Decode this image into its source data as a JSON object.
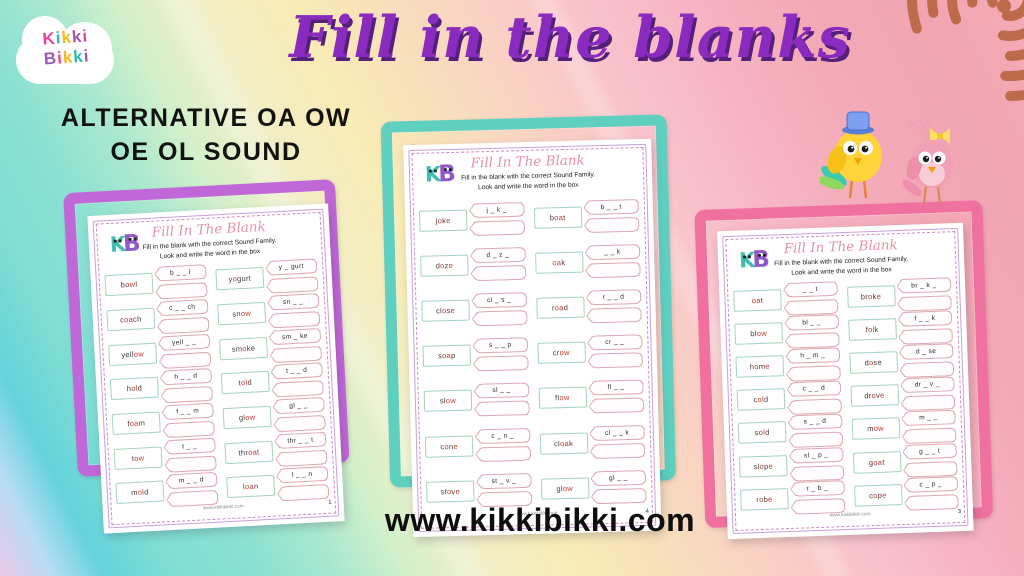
{
  "header": {
    "title": "Fill in the blanks",
    "subtitle_line1": "ALTERNATIVE OA OW",
    "subtitle_line2": "OE OL SOUND"
  },
  "brand": {
    "lines": [
      [
        [
          "K",
          "#e8439a"
        ],
        [
          "i",
          "#2db9b0"
        ],
        [
          "k",
          "#f5b91e"
        ],
        [
          "k",
          "#9b59b6"
        ],
        [
          "i",
          "#e8439a"
        ]
      ],
      [
        [
          "B",
          "#9b59b6"
        ],
        [
          "i",
          "#e8439a"
        ],
        [
          "k",
          "#f5b91e"
        ],
        [
          "k",
          "#2db9b0"
        ],
        [
          "i",
          "#9b59b6"
        ]
      ]
    ]
  },
  "footer": {
    "website": "www.kikkibikki.com"
  },
  "colors": {
    "title_purple": "#8b2abe",
    "title_shadow": "#54207c",
    "highlight_red": "#c23a2f",
    "word_ink": "#3c3c3c",
    "wordbox_border": "#a3d4b8",
    "capsule_border": "#dfa9b0",
    "dashed_border": "#cd8ac2",
    "spiral": "#bd6b4a",
    "frame_purple": "#c168d8",
    "frame_teal": "#5fcfc0",
    "frame_pink": "#f0709f"
  },
  "sheets": [
    {
      "frame_color": "#c168d8",
      "title": "Fill In The Blank",
      "instructions_line1": "Fill in the blank with the correct Sound Family.",
      "instructions_line2": "Look and write the word in the box",
      "footer_site": "www.kikkibikki.com",
      "page_number": "1",
      "rows": [
        {
          "left": {
            "word": [
              [
                "b",
                0
              ],
              [
                "ow",
                1
              ],
              [
                "l",
                0
              ]
            ],
            "hint": "b _ _ l"
          },
          "right": {
            "word": [
              [
                "y",
                0
              ],
              [
                "o",
                1
              ],
              [
                "gurt",
                0
              ]
            ],
            "hint": "y _ gurt"
          }
        },
        {
          "left": {
            "word": [
              [
                "c",
                0
              ],
              [
                "oa",
                1
              ],
              [
                "ch",
                0
              ]
            ],
            "hint": "c _ _ ch"
          },
          "right": {
            "word": [
              [
                "sn",
                0
              ],
              [
                "ow",
                1
              ]
            ],
            "hint": "sn _ _"
          }
        },
        {
          "left": {
            "word": [
              [
                "yell",
                0
              ],
              [
                "ow",
                1
              ]
            ],
            "hint": "yell _ _"
          },
          "right": {
            "word": [
              [
                "sm",
                0
              ],
              [
                "o",
                1
              ],
              [
                "ke",
                0
              ]
            ],
            "hint": "sm _ ke"
          }
        },
        {
          "left": {
            "word": [
              [
                "h",
                0
              ],
              [
                "ol",
                1
              ],
              [
                "d",
                0
              ]
            ],
            "hint": "h _ _ d"
          },
          "right": {
            "word": [
              [
                "t",
                0
              ],
              [
                "ol",
                1
              ],
              [
                "d",
                0
              ]
            ],
            "hint": "t _ _ d"
          }
        },
        {
          "left": {
            "word": [
              [
                "f",
                0
              ],
              [
                "oa",
                1
              ],
              [
                "m",
                0
              ]
            ],
            "hint": "f _ _ m"
          },
          "right": {
            "word": [
              [
                "gl",
                0
              ],
              [
                "ow",
                1
              ]
            ],
            "hint": "gl _ _"
          }
        },
        {
          "left": {
            "word": [
              [
                "t",
                0
              ],
              [
                "ow",
                1
              ]
            ],
            "hint": "t _ _"
          },
          "right": {
            "word": [
              [
                "thr",
                0
              ],
              [
                "oa",
                1
              ],
              [
                "t",
                0
              ]
            ],
            "hint": "thr _ _ t"
          }
        },
        {
          "left": {
            "word": [
              [
                "m",
                0
              ],
              [
                "ol",
                1
              ],
              [
                "d",
                0
              ]
            ],
            "hint": "m _ _ d"
          },
          "right": {
            "word": [
              [
                "l",
                0
              ],
              [
                "oa",
                1
              ],
              [
                "n",
                0
              ]
            ],
            "hint": "l _ _ n"
          }
        }
      ]
    },
    {
      "frame_color": "#5fcfc0",
      "title": "Fill In The Blank",
      "instructions_line1": "Fill in the blank with the correct Sound Family.",
      "instructions_line2": "Look and write the word in the box",
      "footer_site": "www.kikkibikki.com",
      "page_number": "4",
      "rows": [
        {
          "left": {
            "word": [
              [
                "j",
                0
              ],
              [
                "o",
                1
              ],
              [
                "k",
                0
              ],
              [
                "e",
                1
              ]
            ],
            "hint": "j _ k _"
          },
          "right": {
            "word": [
              [
                "b",
                0
              ],
              [
                "oa",
                1
              ],
              [
                "t",
                0
              ]
            ],
            "hint": "b _ _ t"
          }
        },
        {
          "left": {
            "word": [
              [
                "d",
                0
              ],
              [
                "o",
                1
              ],
              [
                "z",
                0
              ],
              [
                "e",
                1
              ]
            ],
            "hint": "d _ z _"
          },
          "right": {
            "word": [
              [
                "oa",
                1
              ],
              [
                "k",
                0
              ]
            ],
            "hint": "_ _ k"
          }
        },
        {
          "left": {
            "word": [
              [
                "cl",
                0
              ],
              [
                "o",
                1
              ],
              [
                "s",
                0
              ],
              [
                "e",
                1
              ]
            ],
            "hint": "cl _ s _"
          },
          "right": {
            "word": [
              [
                "r",
                0
              ],
              [
                "oa",
                1
              ],
              [
                "d",
                0
              ]
            ],
            "hint": "r _ _ d"
          }
        },
        {
          "left": {
            "word": [
              [
                "s",
                0
              ],
              [
                "oa",
                1
              ],
              [
                "p",
                0
              ]
            ],
            "hint": "s _ _ p"
          },
          "right": {
            "word": [
              [
                "cr",
                0
              ],
              [
                "ow",
                1
              ]
            ],
            "hint": "cr _ _"
          }
        },
        {
          "left": {
            "word": [
              [
                "sl",
                0
              ],
              [
                "ow",
                1
              ]
            ],
            "hint": "sl _ _"
          },
          "right": {
            "word": [
              [
                "fl",
                0
              ],
              [
                "ow",
                1
              ]
            ],
            "hint": "fl _ _"
          }
        },
        {
          "left": {
            "word": [
              [
                "c",
                0
              ],
              [
                "o",
                1
              ],
              [
                "n",
                0
              ],
              [
                "e",
                1
              ]
            ],
            "hint": "c _ n _"
          },
          "right": {
            "word": [
              [
                "cl",
                0
              ],
              [
                "oa",
                1
              ],
              [
                "k",
                0
              ]
            ],
            "hint": "cl _ _ k"
          }
        },
        {
          "left": {
            "word": [
              [
                "st",
                0
              ],
              [
                "o",
                1
              ],
              [
                "v",
                0
              ],
              [
                "e",
                1
              ]
            ],
            "hint": "st _ v _"
          },
          "right": {
            "word": [
              [
                "gl",
                0
              ],
              [
                "ow",
                1
              ]
            ],
            "hint": "gl _ _"
          }
        }
      ]
    },
    {
      "frame_color": "#f0709f",
      "title": "Fill In The Blank",
      "instructions_line1": "Fill in the blank with the correct Sound Family.",
      "instructions_line2": "Look and write the word in the box",
      "footer_site": "www.kikkibikki.com",
      "page_number": "3",
      "rows": [
        {
          "left": {
            "word": [
              [
                "oa",
                1
              ],
              [
                "t",
                0
              ]
            ],
            "hint": "_ _ t"
          },
          "right": {
            "word": [
              [
                "br",
                0
              ],
              [
                "o",
                1
              ],
              [
                "k",
                0
              ],
              [
                "e",
                1
              ]
            ],
            "hint": "br _ k _"
          }
        },
        {
          "left": {
            "word": [
              [
                "bl",
                0
              ],
              [
                "ow",
                1
              ]
            ],
            "hint": "bl _ _"
          },
          "right": {
            "word": [
              [
                "f",
                0
              ],
              [
                "ol",
                1
              ],
              [
                "k",
                0
              ]
            ],
            "hint": "f _ _ k"
          }
        },
        {
          "left": {
            "word": [
              [
                "h",
                0
              ],
              [
                "o",
                1
              ],
              [
                "m",
                0
              ],
              [
                "e",
                1
              ]
            ],
            "hint": "h _ m _"
          },
          "right": {
            "word": [
              [
                "d",
                0
              ],
              [
                "o",
                1
              ],
              [
                "se",
                0
              ]
            ],
            "hint": "d _ se"
          }
        },
        {
          "left": {
            "word": [
              [
                "c",
                0
              ],
              [
                "ol",
                1
              ],
              [
                "d",
                0
              ]
            ],
            "hint": "c _ _ d"
          },
          "right": {
            "word": [
              [
                "dr",
                0
              ],
              [
                "o",
                1
              ],
              [
                "v",
                0
              ],
              [
                "e",
                1
              ]
            ],
            "hint": "dr _ v _"
          }
        },
        {
          "left": {
            "word": [
              [
                "s",
                0
              ],
              [
                "ol",
                1
              ],
              [
                "d",
                0
              ]
            ],
            "hint": "s _ _ d"
          },
          "right": {
            "word": [
              [
                "m",
                0
              ],
              [
                "ow",
                1
              ]
            ],
            "hint": "m _ _"
          }
        },
        {
          "left": {
            "word": [
              [
                "sl",
                0
              ],
              [
                "o",
                1
              ],
              [
                "p",
                0
              ],
              [
                "e",
                1
              ]
            ],
            "hint": "sl _ p _"
          },
          "right": {
            "word": [
              [
                "g",
                0
              ],
              [
                "oa",
                1
              ],
              [
                "t",
                0
              ]
            ],
            "hint": "g _ _ t"
          }
        },
        {
          "left": {
            "word": [
              [
                "r",
                0
              ],
              [
                "o",
                1
              ],
              [
                "b",
                0
              ],
              [
                "e",
                1
              ]
            ],
            "hint": "r _ b _"
          },
          "right": {
            "word": [
              [
                "c",
                0
              ],
              [
                "o",
                1
              ],
              [
                "p",
                0
              ],
              [
                "e",
                1
              ]
            ],
            "hint": "c _ p _"
          }
        }
      ]
    }
  ]
}
